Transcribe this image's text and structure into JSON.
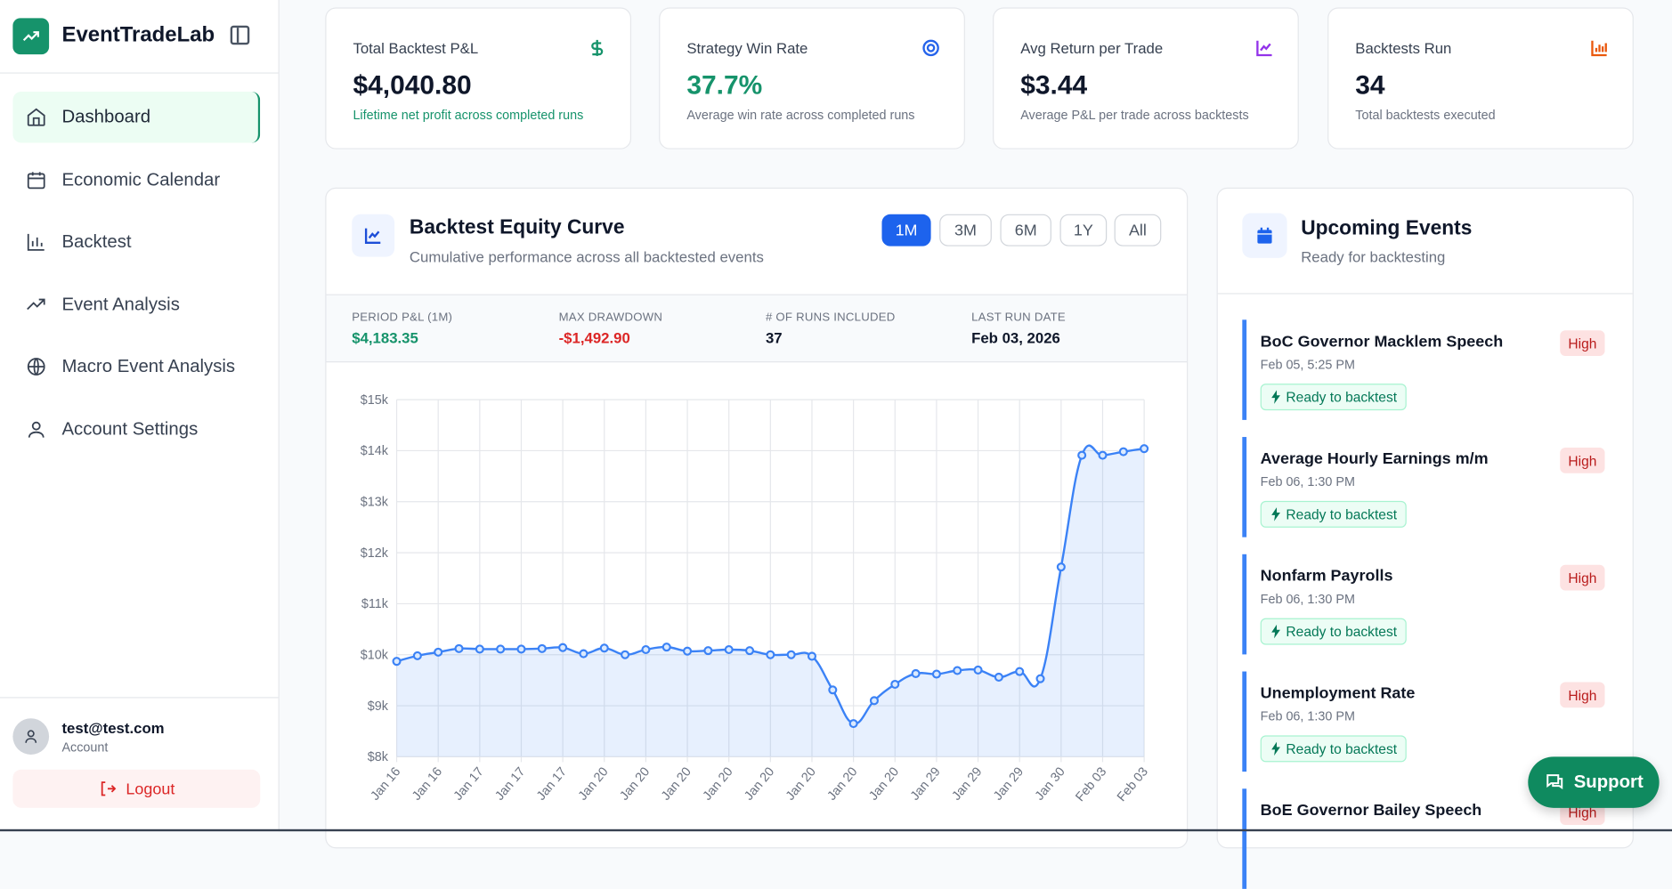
{
  "sidebar": {
    "brand": "EventTradeLab",
    "items": [
      {
        "label": "Dashboard",
        "icon": "home-icon",
        "active": true
      },
      {
        "label": "Economic Calendar",
        "icon": "calendar-icon"
      },
      {
        "label": "Backtest",
        "icon": "bar-chart-icon"
      },
      {
        "label": "Event Analysis",
        "icon": "trending-up-icon"
      },
      {
        "label": "Macro Event Analysis",
        "icon": "globe-icon"
      },
      {
        "label": "Account Settings",
        "icon": "user-icon"
      }
    ],
    "user": {
      "email": "test@test.com",
      "role": "Account"
    },
    "logout": "Logout"
  },
  "kpis": [
    {
      "title": "Total Backtest P&L",
      "value": "$4,040.80",
      "sub": "Lifetime net profit across completed runs",
      "icon": "dollar-icon",
      "color": "#16936b"
    },
    {
      "title": "Strategy Win Rate",
      "value": "37.7%",
      "sub": "Average win rate across completed runs",
      "icon": "target-icon",
      "color": "#2563eb"
    },
    {
      "title": "Avg Return per Trade",
      "value": "$3.44",
      "sub": "Average P&L per trade across backtests",
      "icon": "line-chart-icon",
      "color": "#9333ea"
    },
    {
      "title": "Backtests Run",
      "value": "34",
      "sub": "Total backtests executed",
      "icon": "bar-chart-icon",
      "color": "#ea580c"
    }
  ],
  "equity": {
    "title": "Backtest Equity Curve",
    "subtitle": "Cumulative performance across all backtested events",
    "ranges": [
      "1M",
      "3M",
      "6M",
      "1Y",
      "All"
    ],
    "active_range": "1M",
    "stats": [
      {
        "label": "PERIOD P&L (1M)",
        "value": "$4,183.35",
        "color": "#16936b"
      },
      {
        "label": "MAX DRAWDOWN",
        "value": "-$1,492.90",
        "color": "#dc2626"
      },
      {
        "label": "# OF RUNS INCLUDED",
        "value": "37",
        "color": "#0f172a"
      },
      {
        "label": "LAST RUN DATE",
        "value": "Feb 03, 2026",
        "color": "#0f172a"
      }
    ]
  },
  "chart_data": {
    "type": "area",
    "ylim": [
      8000,
      15000
    ],
    "y_ticks": [
      "$8k",
      "$9k",
      "$10k",
      "$11k",
      "$12k",
      "$13k",
      "$14k",
      "$15k"
    ],
    "x_tick_labels": [
      "Jan 16",
      "Jan 16",
      "Jan 17",
      "Jan 17",
      "Jan 17",
      "Jan 20",
      "Jan 20",
      "Jan 20",
      "Jan 20",
      "Jan 20",
      "Jan 20",
      "Jan 20",
      "Jan 20",
      "Jan 29",
      "Jan 29",
      "Jan 29",
      "Jan 30",
      "Feb 03",
      "Feb 03"
    ],
    "grid": true,
    "color": "#3b82f6",
    "values": [
      9870,
      9980,
      10050,
      10120,
      10110,
      10110,
      10110,
      10120,
      10140,
      10020,
      10130,
      10000,
      10100,
      10150,
      10070,
      10080,
      10100,
      10080,
      10000,
      10000,
      9970,
      9310,
      8650,
      9100,
      9420,
      9630,
      9620,
      9690,
      9700,
      9560,
      9670,
      9530,
      11720,
      13910,
      13910,
      13980,
      14040
    ]
  },
  "events": {
    "title": "Upcoming Events",
    "subtitle": "Ready for backtesting",
    "items": [
      {
        "name": "BoC Governor Macklem Speech",
        "date": "Feb 05, 5:25 PM",
        "status": "Ready to backtest",
        "impact": "High"
      },
      {
        "name": "Average Hourly Earnings m/m",
        "date": "Feb 06, 1:30 PM",
        "status": "Ready to backtest",
        "impact": "High"
      },
      {
        "name": "Nonfarm Payrolls",
        "date": "Feb 06, 1:30 PM",
        "status": "Ready to backtest",
        "impact": "High"
      },
      {
        "name": "Unemployment Rate",
        "date": "Feb 06, 1:30 PM",
        "status": "Ready to backtest",
        "impact": "High"
      },
      {
        "name": "BoE Governor Bailey Speech",
        "date": "",
        "status": "",
        "impact": "High"
      }
    ]
  },
  "support": "Support"
}
